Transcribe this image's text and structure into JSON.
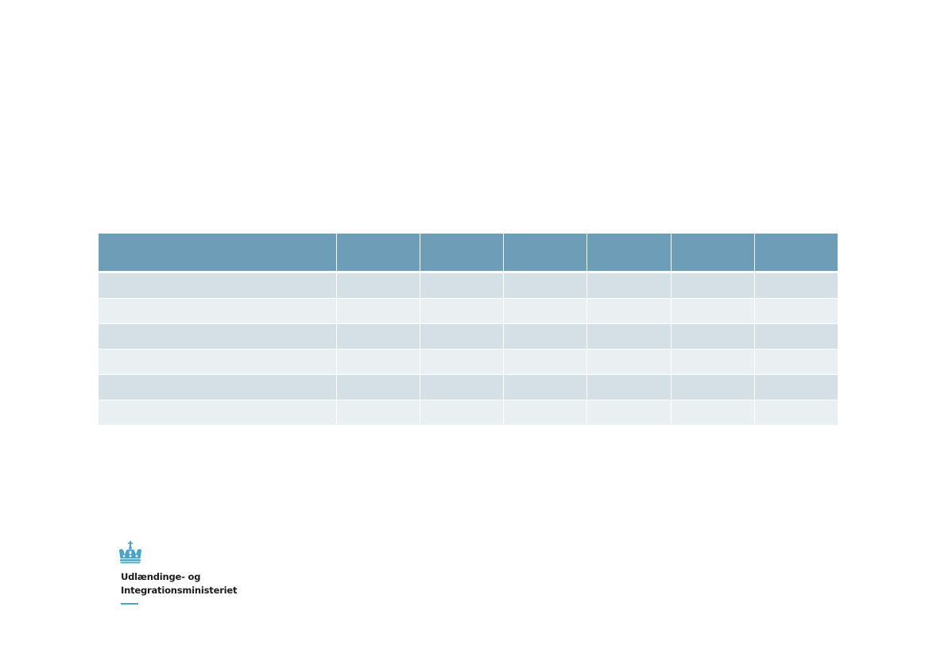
{
  "table": {
    "columns": 7,
    "header": [
      "",
      "",
      "",
      "",
      "",
      "",
      ""
    ],
    "rows": [
      [
        "",
        "",
        "",
        "",
        "",
        "",
        ""
      ],
      [
        "",
        "",
        "",
        "",
        "",
        "",
        ""
      ],
      [
        "",
        "",
        "",
        "",
        "",
        "",
        ""
      ],
      [
        "",
        "",
        "",
        "",
        "",
        "",
        ""
      ],
      [
        "",
        "",
        "",
        "",
        "",
        "",
        ""
      ],
      [
        "",
        "",
        "",
        "",
        "",
        "",
        ""
      ]
    ]
  },
  "logo": {
    "icon": "crown-icon",
    "line1": "Udlændinge- og",
    "line2": "Integrationsministeriet"
  },
  "colors": {
    "header": "#6e9db7",
    "row_dark": "#d5e0e6",
    "row_light": "#eaeff2",
    "logo_blue": "#4aa3c8",
    "text": "#1c1c1c"
  }
}
